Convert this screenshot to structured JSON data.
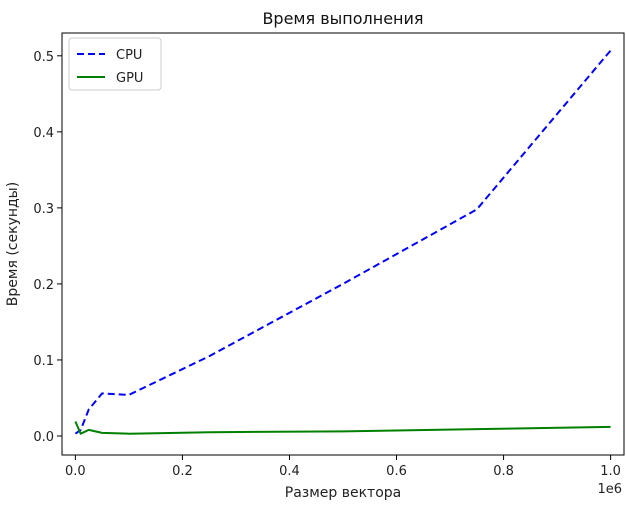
{
  "chart_data": {
    "type": "line",
    "title": "Время выполнения",
    "xlabel": "Размер вектора",
    "ylabel": "Время (секунды)",
    "x_offset_label": "1e6",
    "xlim": [
      -0.025,
      1.025
    ],
    "ylim": [
      -0.025,
      0.53
    ],
    "x_ticks": [
      0.0,
      0.2,
      0.4,
      0.6,
      0.8,
      1.0
    ],
    "x_tick_labels": [
      "0.0",
      "0.2",
      "0.4",
      "0.6",
      "0.8",
      "1.0"
    ],
    "y_ticks": [
      0.0,
      0.1,
      0.2,
      0.3,
      0.4,
      0.5
    ],
    "y_tick_labels": [
      "0.0",
      "0.1",
      "0.2",
      "0.3",
      "0.4",
      "0.5"
    ],
    "grid": false,
    "legend_position": "top-left",
    "series": [
      {
        "name": "CPU",
        "color": "#0000ff",
        "style": "dashed",
        "x": [
          0.0,
          0.01,
          0.025,
          0.05,
          0.1,
          0.25,
          0.5,
          0.75,
          1.0
        ],
        "y": [
          0.003,
          0.008,
          0.035,
          0.056,
          0.054,
          0.105,
          0.2,
          0.298,
          0.507
        ]
      },
      {
        "name": "GPU",
        "color": "#008000",
        "style": "solid",
        "x": [
          0.0,
          0.01,
          0.025,
          0.05,
          0.1,
          0.25,
          0.5,
          0.75,
          1.0
        ],
        "y": [
          0.019,
          0.003,
          0.008,
          0.004,
          0.003,
          0.005,
          0.006,
          0.009,
          0.012
        ]
      }
    ]
  }
}
